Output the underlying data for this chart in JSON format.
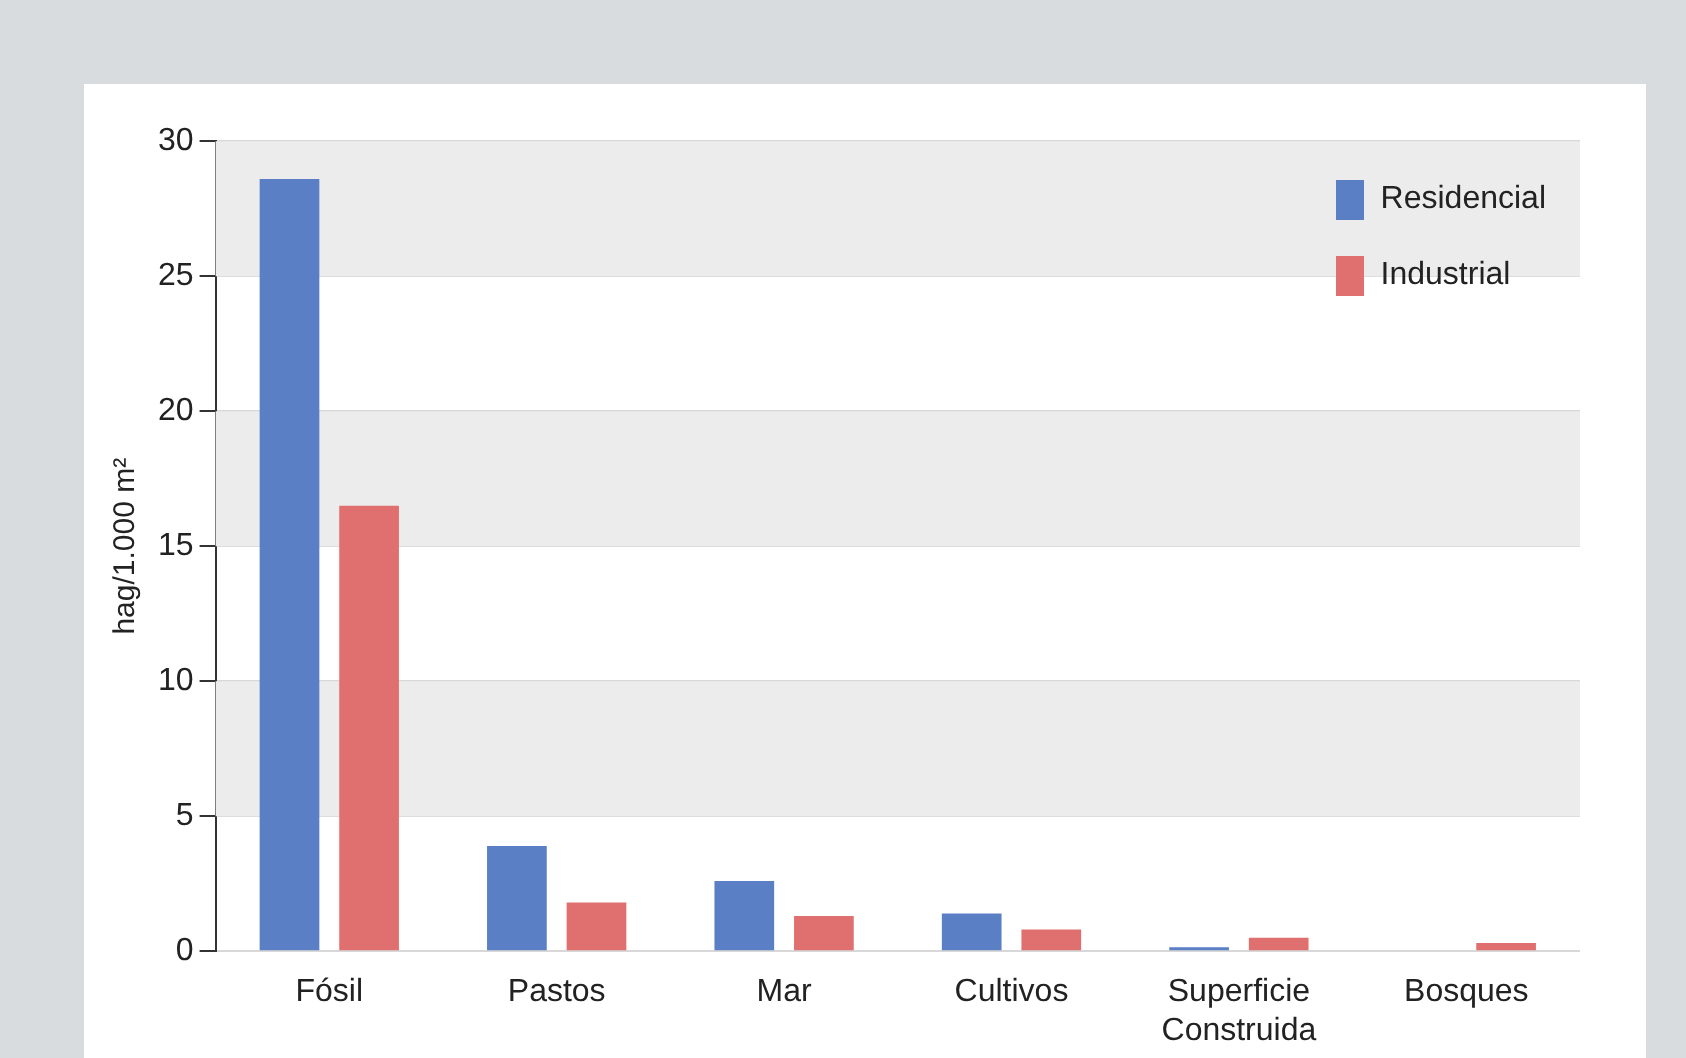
{
  "chart_data": {
    "type": "bar",
    "ylabel": "hag/1.000 m²",
    "categories": [
      "Fósil",
      "Pastos",
      "Mar",
      "Cultivos",
      "Superficie Construida",
      "Bosques"
    ],
    "series": [
      {
        "name": "Residencial",
        "color": "#5b7fc4",
        "values": [
          28.6,
          3.9,
          2.6,
          1.4,
          0.15,
          0
        ]
      },
      {
        "name": "Industrial",
        "color": "#e0706f",
        "values": [
          16.5,
          1.8,
          1.3,
          0.8,
          0.5,
          0.3
        ]
      }
    ],
    "ylim": [
      0,
      30
    ],
    "yticks": [
      0,
      5,
      10,
      15,
      20,
      25,
      30
    ],
    "grid": "y",
    "legend": "top right"
  }
}
